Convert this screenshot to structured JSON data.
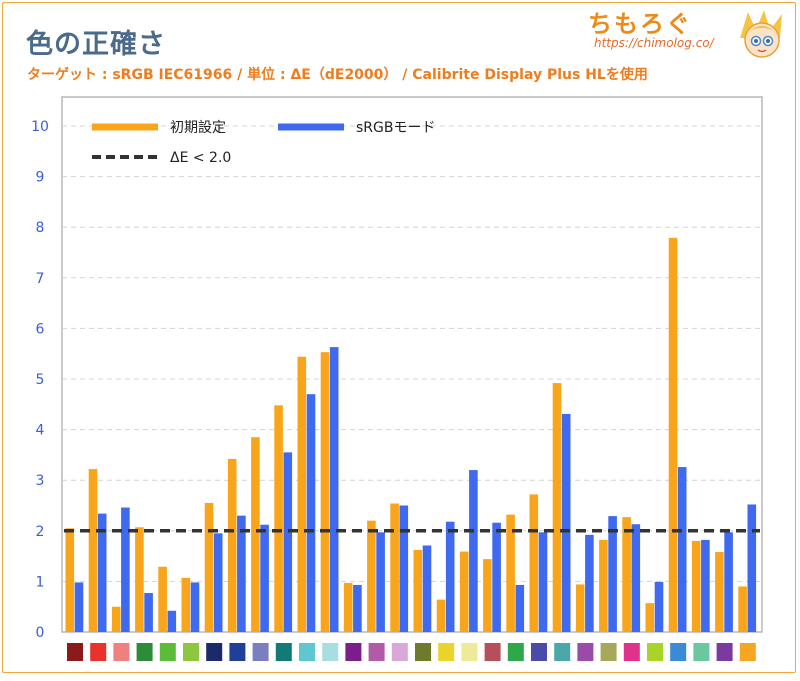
{
  "title": "色の正確さ",
  "subtitle": "ターゲット : sRGB IEC61966  / 単位 : ΔE（dE2000） / Calibrite Display Plus HLを使用",
  "logo": {
    "name": "ちもろぐ",
    "url": "https://chimolog.co/"
  },
  "chart_data": {
    "type": "bar",
    "title": "色の正確さ",
    "subtitle": "ターゲット : sRGB IEC61966  / 単位 : ΔE（dE2000） / Calibrite Display Plus HLを使用",
    "xlabel": "",
    "ylabel": "",
    "ylim": [
      0,
      10.5
    ],
    "yticks": [
      0,
      1,
      2,
      3,
      4,
      5,
      6,
      7,
      8,
      9,
      10
    ],
    "grid": true,
    "legend_position": "top-left",
    "reference_line": {
      "label": "ΔE < 2.0",
      "value": 2.0,
      "color": "#333333"
    },
    "category_swatches": [
      "#8b1a1a",
      "#e8322a",
      "#f08080",
      "#2e8b3a",
      "#5dbb3a",
      "#8dc63f",
      "#1b2a6b",
      "#1f3f99",
      "#7a7fc0",
      "#137a78",
      "#5fc7d0",
      "#a8dde2",
      "#7a1e8a",
      "#b05aa8",
      "#d8a8d8",
      "#6f7a2a",
      "#e8d42a",
      "#efe99a",
      "#b5505a",
      "#2ea84a",
      "#4a4aa8",
      "#4aa8a8",
      "#9a4aa8",
      "#a8a85a",
      "#e0328a",
      "#a8d42a",
      "#3a8ad8",
      "#6ac8a0",
      "#7a3aa0",
      "#f5a623"
    ],
    "series": [
      {
        "name": "初期設定",
        "color": "#f8a51b",
        "values": [
          2.05,
          3.22,
          0.5,
          2.07,
          1.29,
          1.07,
          2.55,
          3.42,
          3.85,
          4.48,
          5.44,
          5.53,
          0.97,
          2.2,
          2.54,
          1.62,
          0.64,
          1.59,
          1.44,
          2.32,
          2.72,
          4.92,
          0.94,
          1.82,
          2.27,
          0.57,
          7.79,
          1.8,
          1.58,
          0.9
        ]
      },
      {
        "name": "sRGBモード",
        "color": "#3f69ef",
        "values": [
          0.98,
          2.34,
          2.46,
          0.77,
          0.42,
          0.98,
          1.95,
          2.3,
          2.12,
          3.55,
          4.7,
          5.63,
          0.93,
          1.97,
          2.5,
          1.71,
          2.18,
          3.2,
          2.16,
          0.93,
          1.97,
          4.31,
          1.92,
          2.29,
          2.13,
          0.99,
          3.26,
          1.82,
          1.97,
          2.52
        ]
      }
    ]
  }
}
